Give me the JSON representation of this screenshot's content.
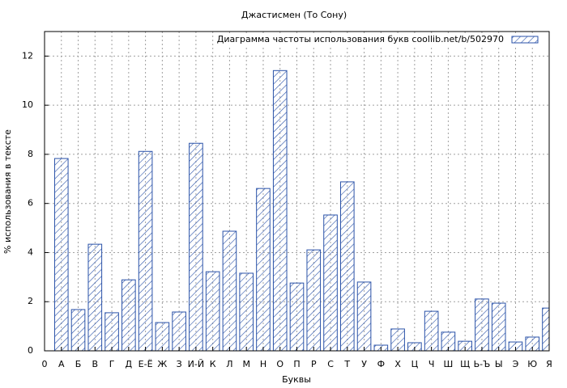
{
  "chart_data": {
    "type": "bar",
    "title": "Джастисмен (То Сону)",
    "x_label": "Буквы",
    "y_label": "% использования в тексте",
    "legend": "Диаграмма частоты использования букв  coollib.net/b/502970",
    "categories": [
      "0",
      "А",
      "Б",
      "В",
      "Г",
      "Д",
      "Е-Ё",
      "Ж",
      "З",
      "И-Й",
      "К",
      "Л",
      "М",
      "Н",
      "О",
      "П",
      "Р",
      "С",
      "Т",
      "У",
      "Ф",
      "Х",
      "Ц",
      "Ч",
      "Ш",
      "Щ",
      "Ь-Ъ",
      "Ы",
      "Э",
      "Ю",
      "Я"
    ],
    "values": [
      null,
      7.83,
      1.68,
      4.34,
      1.55,
      2.89,
      8.12,
      1.15,
      1.58,
      8.45,
      3.22,
      4.87,
      3.16,
      6.61,
      11.41,
      2.76,
      4.11,
      5.53,
      6.88,
      2.8,
      0.23,
      0.89,
      0.33,
      1.61,
      0.76,
      0.39,
      2.11,
      1.94,
      0.36,
      0.56,
      1.74
    ],
    "color": "#2a52a8",
    "xlim": [
      0,
      30
    ],
    "ylim": [
      0,
      13
    ],
    "yticks": [
      0,
      2,
      4,
      6,
      8,
      10,
      12
    ],
    "grid": true
  }
}
